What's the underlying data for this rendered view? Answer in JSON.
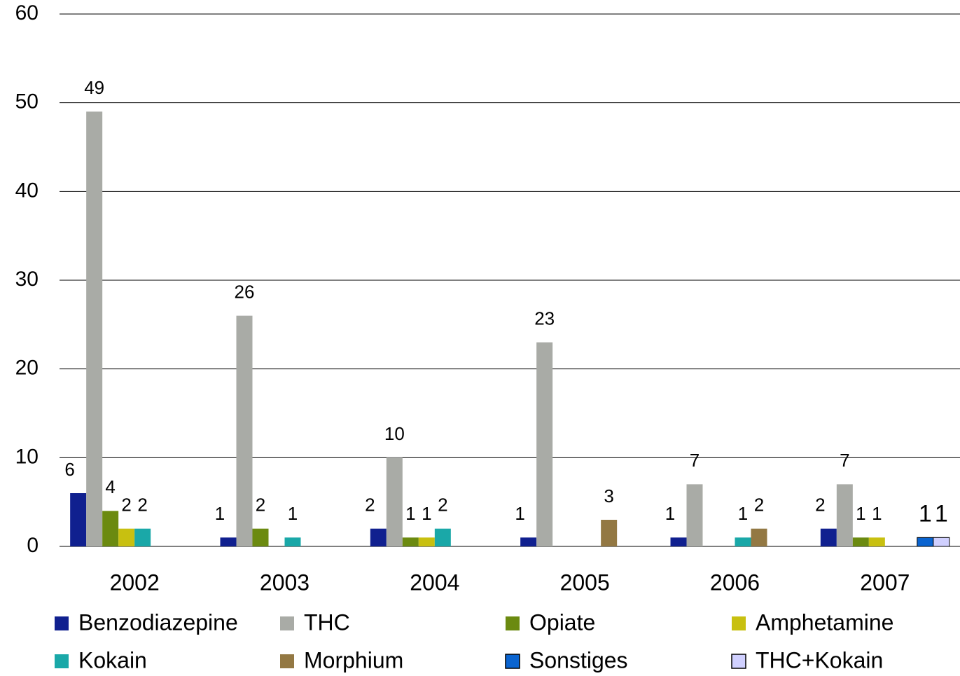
{
  "chart_data": {
    "type": "bar",
    "categories": [
      "2002",
      "2003",
      "2004",
      "2005",
      "2006",
      "2007"
    ],
    "series": [
      {
        "name": "Benzodiazepine",
        "color": "#10208f",
        "values": [
          6,
          1,
          2,
          1,
          1,
          2
        ]
      },
      {
        "name": "THC",
        "color": "#a9aba6",
        "values": [
          49,
          26,
          10,
          23,
          7,
          7
        ]
      },
      {
        "name": "Opiate",
        "color": "#6b8a10",
        "values": [
          4,
          2,
          1,
          null,
          null,
          1
        ]
      },
      {
        "name": "Amphetamine",
        "color": "#c8c010",
        "values": [
          2,
          null,
          1,
          null,
          null,
          1
        ]
      },
      {
        "name": "Kokain",
        "color": "#1aa8a8",
        "values": [
          2,
          1,
          2,
          null,
          1,
          null
        ]
      },
      {
        "name": "Morphium",
        "color": "#937843",
        "values": [
          null,
          null,
          null,
          3,
          2,
          null
        ]
      },
      {
        "name": "Sonstiges",
        "color": "#0a64d0",
        "values": [
          null,
          null,
          null,
          null,
          null,
          1
        ]
      },
      {
        "name": "THC+Kokain",
        "color": "#d0d0ff",
        "values": [
          null,
          null,
          null,
          null,
          null,
          1
        ]
      }
    ],
    "ylim": [
      0,
      60
    ],
    "yticks": [
      0,
      10,
      20,
      30,
      40,
      50,
      60
    ],
    "grid": true,
    "legend": "bottom"
  }
}
